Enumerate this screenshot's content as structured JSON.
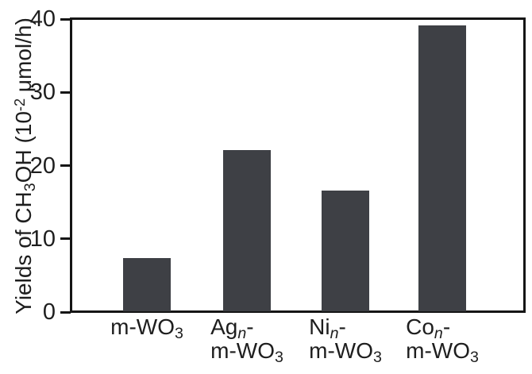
{
  "figure": {
    "background_color": "#ffffff",
    "axis_color": "#151515",
    "text_color": "#1e1e1e"
  },
  "chart_data": {
    "type": "bar",
    "title": "",
    "xlabel": "",
    "ylabel_plain": "Yields of CH3OH (10-2 μmol/h)",
    "ylabel_segments": [
      {
        "text": "Yields of CH"
      },
      {
        "text": "3",
        "style": "sub"
      },
      {
        "text": "OH (10"
      },
      {
        "text": "-2",
        "style": "sup"
      },
      {
        "text": " μmol/h)"
      }
    ],
    "categories_plain": [
      "m-WO3",
      "Agn-m-WO3",
      "Nin-m-WO3",
      "Con-m-WO3"
    ],
    "categories": [
      {
        "lines": [
          [
            {
              "text": "m-WO"
            },
            {
              "text": "3",
              "style": "sub"
            }
          ]
        ]
      },
      {
        "lines": [
          [
            {
              "text": "Ag"
            },
            {
              "text": "n",
              "style": "subitalic"
            },
            {
              "text": "-"
            }
          ],
          [
            {
              "text": "m-WO"
            },
            {
              "text": "3",
              "style": "sub"
            }
          ]
        ]
      },
      {
        "lines": [
          [
            {
              "text": "Ni"
            },
            {
              "text": "n",
              "style": "subitalic"
            },
            {
              "text": "-"
            }
          ],
          [
            {
              "text": "m-WO"
            },
            {
              "text": "3",
              "style": "sub"
            }
          ]
        ]
      },
      {
        "lines": [
          [
            {
              "text": "Co"
            },
            {
              "text": "n",
              "style": "subitalic"
            },
            {
              "text": "-"
            }
          ],
          [
            {
              "text": "m-WO"
            },
            {
              "text": "3",
              "style": "sub"
            }
          ]
        ]
      }
    ],
    "values": [
      7.3,
      22,
      16.5,
      39
    ],
    "ylim": [
      0,
      40
    ],
    "yticks": [
      "0",
      "10",
      "20",
      "30",
      "40"
    ],
    "ytick_values": [
      0,
      10,
      20,
      30,
      40
    ],
    "grid": false,
    "legend": null,
    "bar_color": "#3e4045"
  }
}
